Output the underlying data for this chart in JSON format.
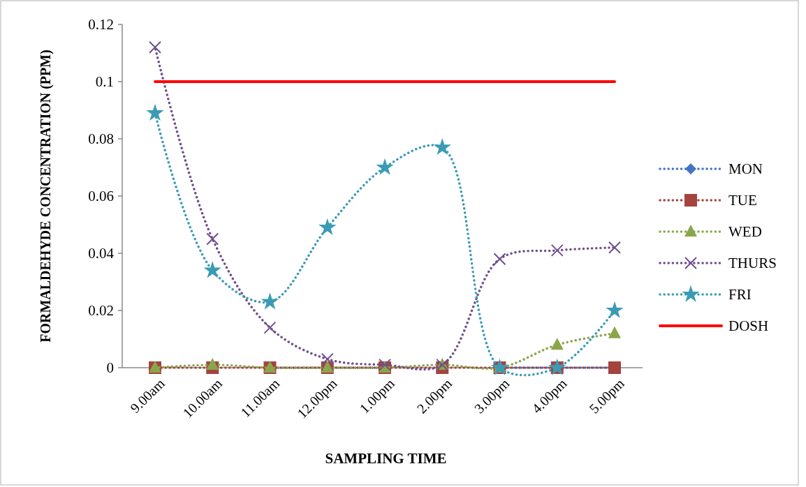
{
  "chart_data": {
    "type": "line",
    "xlabel": "SAMPLING TIME",
    "ylabel": "FORMALDEHYDE CONCENTRATION (PPM)",
    "categories": [
      "9.00am",
      "10.00am",
      "11.00am",
      "12.00pm",
      "1.00pm",
      "2.00pm",
      "3.00pm",
      "4.00pm",
      "5.00pm"
    ],
    "ylim": [
      0,
      0.12
    ],
    "yticks": [
      0,
      0.02,
      0.04,
      0.06,
      0.08,
      0.1,
      0.12
    ],
    "grid": false,
    "legend": "right",
    "series": [
      {
        "name": "MON",
        "color": "#4472c4",
        "marker": "diamond",
        "line_style": "dotted",
        "values": [
          null,
          null,
          0,
          0,
          0,
          null,
          0,
          0,
          0
        ]
      },
      {
        "name": "TUE",
        "color": "#a5433f",
        "marker": "square",
        "line_style": "dotted",
        "values": [
          0,
          0,
          0,
          0,
          0,
          0,
          0,
          0,
          0
        ]
      },
      {
        "name": "WED",
        "color": "#8aa64a",
        "marker": "triangle",
        "line_style": "dotted",
        "values": [
          0,
          0.001,
          0,
          0,
          0,
          0.001,
          0,
          0.008,
          0.012
        ]
      },
      {
        "name": "THURS",
        "color": "#6f4f8f",
        "marker": "cross",
        "line_style": "dotted",
        "values": [
          0.112,
          0.045,
          0.014,
          0.003,
          0.001,
          0.001,
          0.038,
          0.041,
          0.042
        ]
      },
      {
        "name": "FRI",
        "color": "#3b9bb5",
        "marker": "star",
        "line_style": "dotted",
        "values": [
          0.089,
          0.034,
          0.023,
          0.049,
          0.07,
          0.077,
          0,
          0,
          0.02
        ]
      },
      {
        "name": "DOSH",
        "color": "#ff0000",
        "marker": "none",
        "line_style": "solid",
        "values": [
          0.1,
          0.1,
          0.1,
          0.1,
          0.1,
          0.1,
          0.1,
          0.1,
          0.1
        ]
      }
    ]
  }
}
